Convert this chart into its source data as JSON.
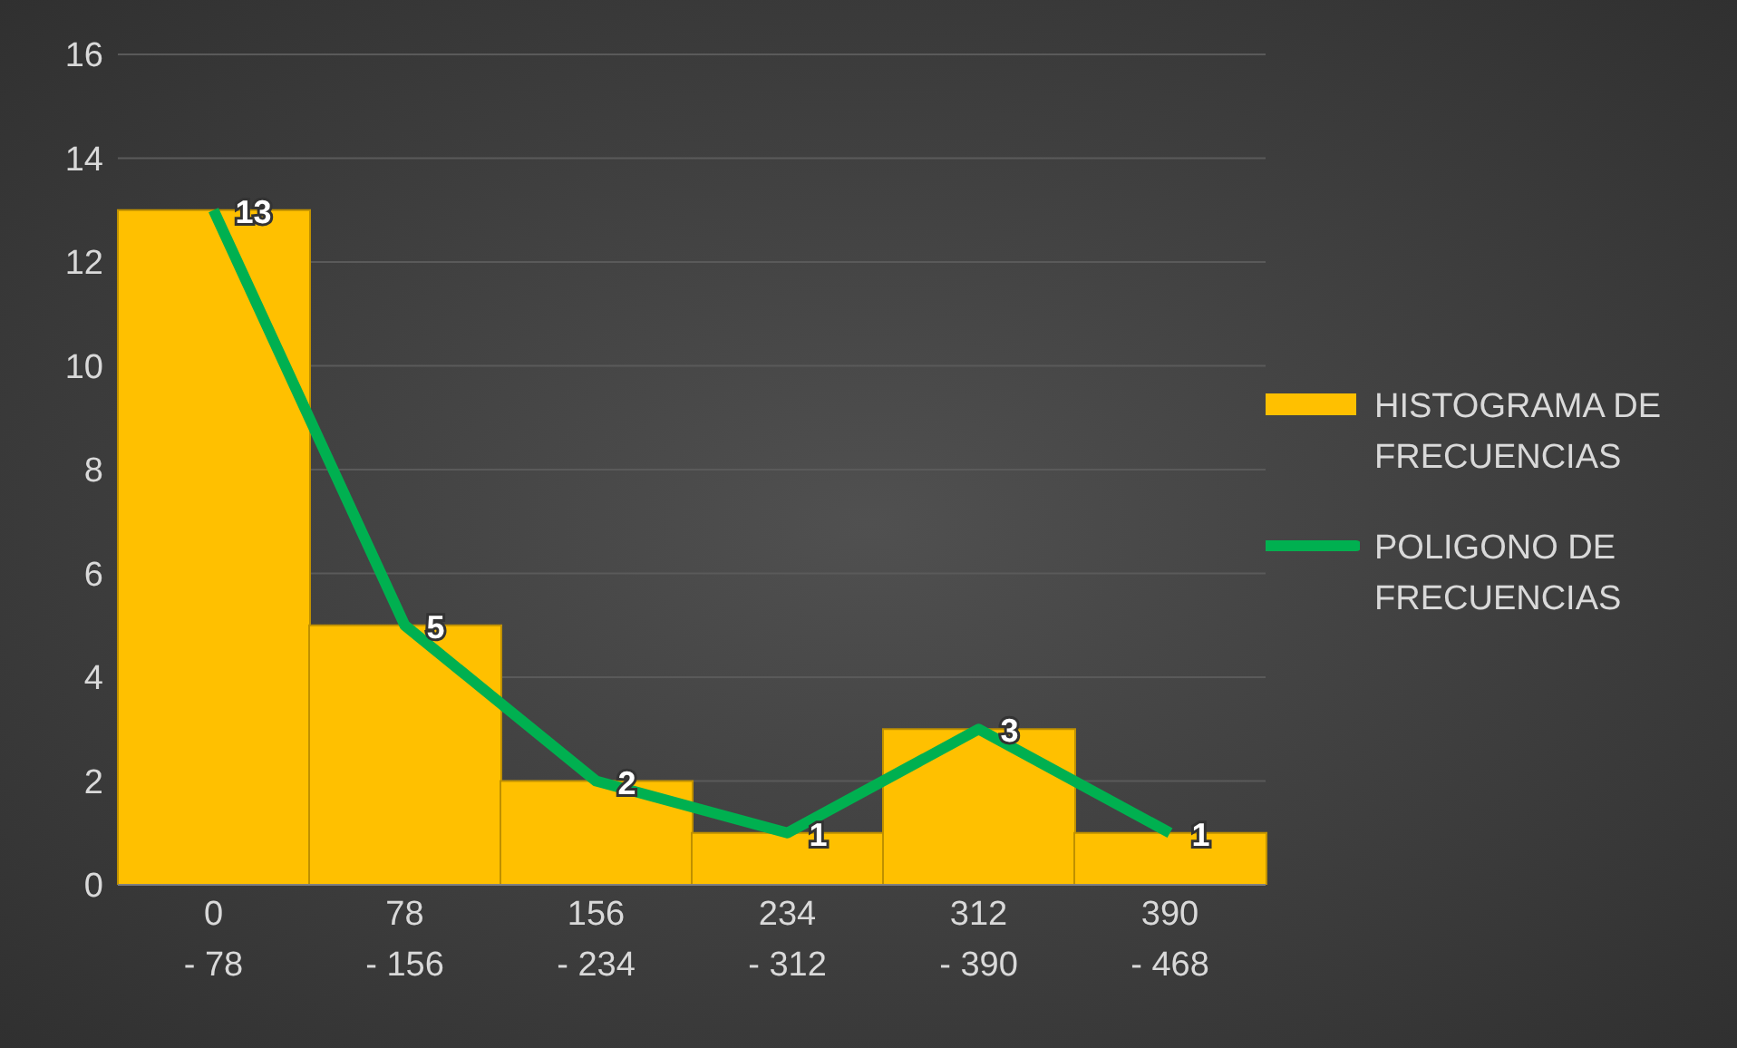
{
  "chart_data": {
    "type": "bar",
    "categories": [
      "0 - 78",
      "78 - 156",
      "156 - 234",
      "234 - 312",
      "312 - 390",
      "390 - 468"
    ],
    "series": [
      {
        "name": "HISTOGRAMA DE FRECUENCIAS",
        "color": "#ffc000",
        "values": [
          13,
          5,
          2,
          1,
          3,
          1
        ]
      },
      {
        "name": "POLIGONO DE FRECUENCIAS",
        "type": "line",
        "color": "#00b050",
        "values": [
          13,
          5,
          2,
          1,
          3,
          1
        ],
        "value_labels": [
          "13",
          "5",
          "2",
          "1",
          "3",
          "1"
        ]
      }
    ],
    "ylim": [
      0,
      16
    ],
    "yticks": [
      0,
      2,
      4,
      6,
      8,
      10,
      12,
      14,
      16
    ],
    "grid": "y",
    "legend": "right",
    "marker": "none"
  }
}
